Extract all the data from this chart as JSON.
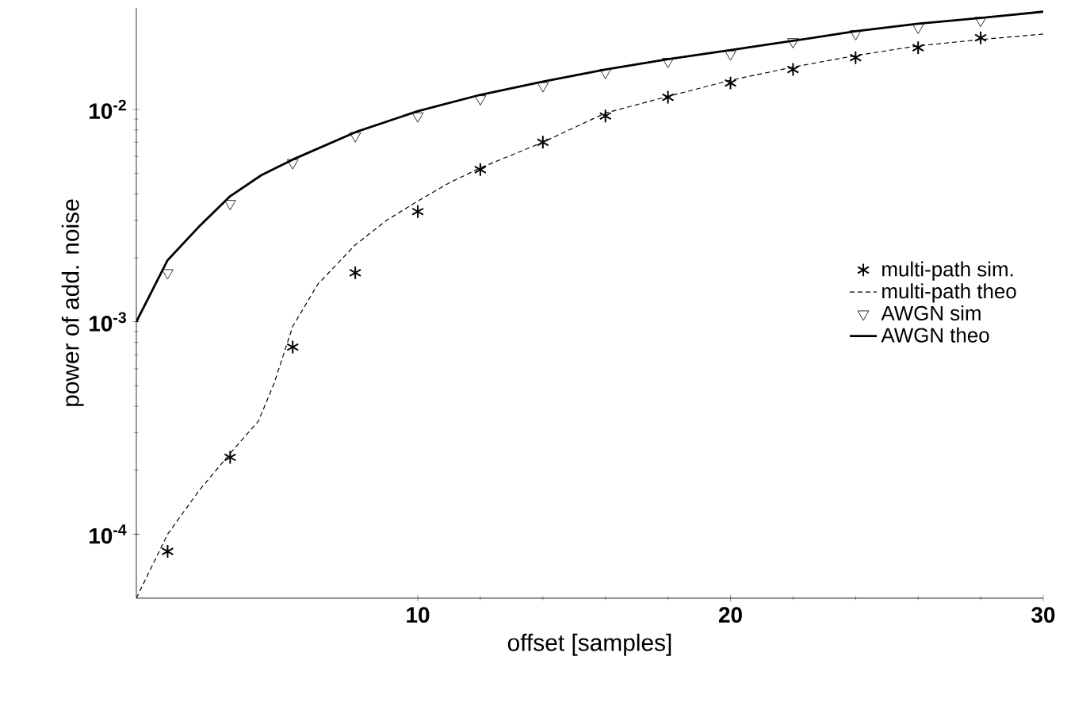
{
  "chart_data": {
    "type": "line",
    "xlabel": "offset [samples]",
    "ylabel": "power of add. noise",
    "log": "y",
    "xlim": [
      1,
      30
    ],
    "xticks": [
      10,
      20,
      30
    ],
    "ylim": [
      5e-05,
      0.03
    ],
    "yticks": [
      {
        "value": 0.0001,
        "label": "10$^{-4}$"
      },
      {
        "value": 0.001,
        "label": "10$^{-3}$"
      },
      {
        "value": 0.01,
        "label": "10$^{-2}$"
      }
    ],
    "legend": "right",
    "series": [
      {
        "name": "multi-path sim.",
        "type": "scatter",
        "marker": "cross",
        "color": "#000000",
        "x": [
          2,
          4,
          6,
          8,
          10,
          12,
          14,
          16,
          18,
          20,
          22,
          24,
          26,
          28
        ],
        "values": [
          8.3e-05,
          0.00023,
          0.00076,
          0.0017,
          0.0033,
          0.0052,
          0.007,
          0.0093,
          0.0114,
          0.0133,
          0.0154,
          0.0175,
          0.0195,
          0.0217
        ]
      },
      {
        "name": "multi-path theo",
        "line_style": "dashed",
        "color": "#000000",
        "x": [
          1,
          2,
          3,
          4,
          4.9,
          5.4,
          6,
          6.8,
          8,
          9,
          10,
          11,
          12,
          14,
          16,
          18,
          20,
          22,
          24,
          26,
          28,
          30
        ],
        "values": [
          5e-05,
          0.0001,
          0.00016,
          0.00024,
          0.00034,
          0.00051,
          0.00095,
          0.0015,
          0.0023,
          0.003,
          0.0037,
          0.0045,
          0.0053,
          0.007,
          0.0096,
          0.0115,
          0.0137,
          0.0158,
          0.0179,
          0.0199,
          0.0213,
          0.0226
        ]
      },
      {
        "name": "AWGN sim",
        "type": "scatter",
        "marker": "triangle",
        "color": "#000000",
        "x": [
          2,
          4,
          6,
          8,
          10,
          12,
          14,
          16,
          18,
          20,
          22,
          24,
          26,
          28
        ],
        "values": [
          0.0017,
          0.0036,
          0.0056,
          0.0075,
          0.0093,
          0.0112,
          0.0129,
          0.0149,
          0.0168,
          0.0182,
          0.0208,
          0.0227,
          0.0243,
          0.0262
        ]
      },
      {
        "name": "AWGN theo",
        "line_style": "solid",
        "color": "#000000",
        "x": [
          1,
          2,
          3,
          4,
          5,
          6,
          8,
          10,
          12,
          14,
          16,
          18,
          20,
          22,
          24,
          26,
          28,
          30
        ],
        "values": [
          0.001,
          0.00195,
          0.0028,
          0.0039,
          0.0049,
          0.0058,
          0.0078,
          0.0098,
          0.0117,
          0.0135,
          0.0154,
          0.0172,
          0.019,
          0.021,
          0.0233,
          0.0253,
          0.0269,
          0.0288
        ]
      }
    ]
  }
}
